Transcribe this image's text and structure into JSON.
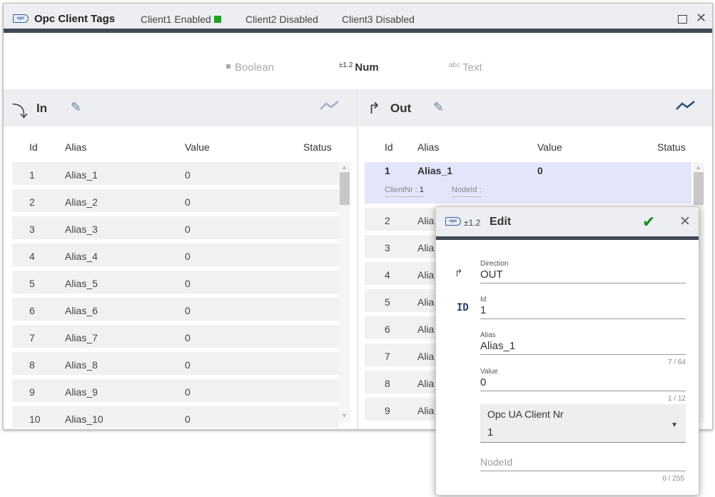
{
  "titlebar": {
    "logo": "opc",
    "title": "Opc Client Tags",
    "tabs": [
      {
        "label": "Client1 Enabled",
        "status_color": "#1da51d"
      },
      {
        "label": "Client2 Disabled"
      },
      {
        "label": "Client3 Disabled"
      }
    ]
  },
  "type_filter": {
    "boolean": "Boolean",
    "num_prefix": "±1.2",
    "num": "Num",
    "text_prefix": "abc",
    "text": "Text"
  },
  "in_panel": {
    "title": "In",
    "columns": {
      "id": "Id",
      "alias": "Alias",
      "value": "Value",
      "status": "Status"
    },
    "rows": [
      {
        "id": "1",
        "alias": "Alias_1",
        "value": "0"
      },
      {
        "id": "2",
        "alias": "Alias_2",
        "value": "0"
      },
      {
        "id": "3",
        "alias": "Alias_3",
        "value": "0"
      },
      {
        "id": "4",
        "alias": "Alias_4",
        "value": "0"
      },
      {
        "id": "5",
        "alias": "Alias_5",
        "value": "0"
      },
      {
        "id": "6",
        "alias": "Alias_6",
        "value": "0"
      },
      {
        "id": "7",
        "alias": "Alias_7",
        "value": "0"
      },
      {
        "id": "8",
        "alias": "Alias_8",
        "value": "0"
      },
      {
        "id": "9",
        "alias": "Alias_9",
        "value": "0"
      },
      {
        "id": "10",
        "alias": "Alias_10",
        "value": "0"
      }
    ]
  },
  "out_panel": {
    "title": "Out",
    "columns": {
      "id": "Id",
      "alias": "Alias",
      "value": "Value",
      "status": "Status"
    },
    "selected": {
      "id": "1",
      "alias": "Alias_1",
      "value": "0",
      "client_label": "ClientNr :",
      "client_value": "1",
      "nodeid_label": "NodeId :"
    },
    "rows": [
      {
        "id": "2",
        "alias": "Alia"
      },
      {
        "id": "3",
        "alias": "Alia"
      },
      {
        "id": "4",
        "alias": "Alia"
      },
      {
        "id": "5",
        "alias": "Alia"
      },
      {
        "id": "6",
        "alias": "Alia"
      },
      {
        "id": "7",
        "alias": "Alia"
      },
      {
        "id": "8",
        "alias": "Alia"
      },
      {
        "id": "9",
        "alias": "Alia"
      }
    ]
  },
  "edit_dialog": {
    "num_prefix": "±1.2",
    "title": "Edit",
    "direction": {
      "label": "Direction",
      "value": "OUT"
    },
    "id": {
      "icon": "ID",
      "label": "Id",
      "value": "1"
    },
    "alias": {
      "label": "Alias",
      "value": "Alias_1",
      "count": "7 / 64"
    },
    "value": {
      "label": "Value",
      "value": "0",
      "count": "1 / 12"
    },
    "client_select": {
      "label": "Opc UA Client Nr",
      "value": "1"
    },
    "nodeid": {
      "placeholder": "NodeId",
      "count": "0 / 255"
    }
  }
}
